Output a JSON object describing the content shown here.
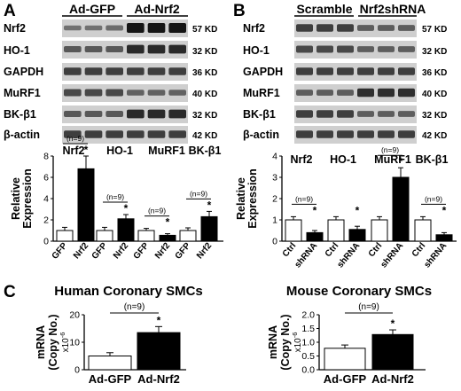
{
  "panels": {
    "A": {
      "letter": "A",
      "groups": [
        "Ad-GFP",
        "Ad-Nrf2"
      ],
      "blot_labels": [
        "Nrf2",
        "HO-1",
        "GAPDH",
        "MuRF1",
        "BK-β1",
        "β-actin"
      ],
      "sizes": [
        "57 KD",
        "32 KD",
        "36 KD",
        "40 KD",
        "32 KD",
        "42 KD"
      ],
      "chart": {
        "type": "bar",
        "top_labels": [
          "Nrf2",
          "HO-1",
          "MuRF1",
          "BK-β1"
        ],
        "ylabel": "Relative Expression",
        "yticks": [
          "0",
          "2",
          "4",
          "6",
          "8"
        ],
        "ylim": [
          0,
          8
        ],
        "pairs": [
          {
            "labels": [
              "GFP",
              "Nrf2"
            ],
            "values": [
              1.0,
              6.8
            ],
            "errors": [
              0.3,
              1.2
            ],
            "n_label": "(n=9)",
            "star": "*"
          },
          {
            "labels": [
              "GFP",
              "Nrf2"
            ],
            "values": [
              1.0,
              2.1
            ],
            "errors": [
              0.3,
              0.4
            ],
            "n_label": "(n=9)",
            "star": "*"
          },
          {
            "labels": [
              "GFP",
              "Nrf2"
            ],
            "values": [
              1.0,
              0.55
            ],
            "errors": [
              0.2,
              0.15
            ],
            "n_label": "(n=9)",
            "star": "*"
          },
          {
            "labels": [
              "GFP",
              "Nrf2"
            ],
            "values": [
              1.0,
              2.3
            ],
            "errors": [
              0.25,
              0.5
            ],
            "n_label": "(n=9)",
            "star": "*"
          }
        ]
      }
    },
    "B": {
      "letter": "B",
      "groups": [
        "Scramble",
        "Nrf2shRNA"
      ],
      "blot_labels": [
        "Nrf2",
        "HO-1",
        "GAPDH",
        "MuRF1",
        "BK-β1",
        "β-actin"
      ],
      "sizes": [
        "57 KD",
        "32 KD",
        "36 KD",
        "40 KD",
        "32 KD",
        "42 KD"
      ],
      "chart": {
        "type": "bar",
        "top_labels": [
          "Nrf2",
          "HO-1",
          "MuRF1",
          "BK-β1"
        ],
        "ylabel": "Relative Expression",
        "yticks": [
          "0",
          "1",
          "2",
          "3",
          "4"
        ],
        "ylim": [
          0,
          4
        ],
        "pairs": [
          {
            "labels": [
              "Ctrl",
              "shRNA"
            ],
            "values": [
              1.0,
              0.4
            ],
            "errors": [
              0.15,
              0.1
            ],
            "n_label": "(n=9)",
            "star": "*"
          },
          {
            "labels": [
              "Ctrl",
              "shRNA"
            ],
            "values": [
              1.0,
              0.55
            ],
            "errors": [
              0.15,
              0.15
            ],
            "n_label": "",
            "star": "*"
          },
          {
            "labels": [
              "Ctrl",
              "shRNA"
            ],
            "values": [
              1.0,
              3.0
            ],
            "errors": [
              0.15,
              0.45
            ],
            "n_label": "(n=9)",
            "star": "*"
          },
          {
            "labels": [
              "Ctrl",
              "shRNA"
            ],
            "values": [
              1.0,
              0.3
            ],
            "errors": [
              0.15,
              0.1
            ],
            "n_label": "(n=9)",
            "star": "*"
          }
        ]
      }
    },
    "C": {
      "letter": "C",
      "charts": [
        {
          "type": "bar",
          "title": "Human Coronary SMCs",
          "ylabel_lines": [
            "mRNA",
            "(Copy No.)"
          ],
          "exponent": "x10",
          "exponent_sup": "-6",
          "yticks": [
            "0",
            "10",
            "20"
          ],
          "ylim": [
            0,
            20
          ],
          "categories": [
            "Ad-GFP",
            "Ad-Nrf2"
          ],
          "values": [
            5.0,
            13.5
          ],
          "errors": [
            1.2,
            2.2
          ],
          "n_label": "(n=9)",
          "star": "*"
        },
        {
          "type": "bar",
          "title": "Mouse Coronary SMCs",
          "ylabel_lines": [
            "mRNA",
            "(Copy No.)"
          ],
          "exponent": "x10",
          "exponent_sup": "-6",
          "yticks": [
            "0.0",
            "0.5",
            "1.0",
            "1.5",
            "2.0"
          ],
          "ylim": [
            0,
            2
          ],
          "categories": [
            "Ad-GFP",
            "Ad-Nrf2"
          ],
          "values": [
            0.78,
            1.28
          ],
          "errors": [
            0.12,
            0.17
          ],
          "n_label": "(n=9)",
          "star": "*"
        }
      ]
    }
  },
  "colors": {
    "control_bar": "#ffffff",
    "treated_bar": "#000000",
    "blot_bg": "#cfcfcf",
    "band": "#151515"
  }
}
